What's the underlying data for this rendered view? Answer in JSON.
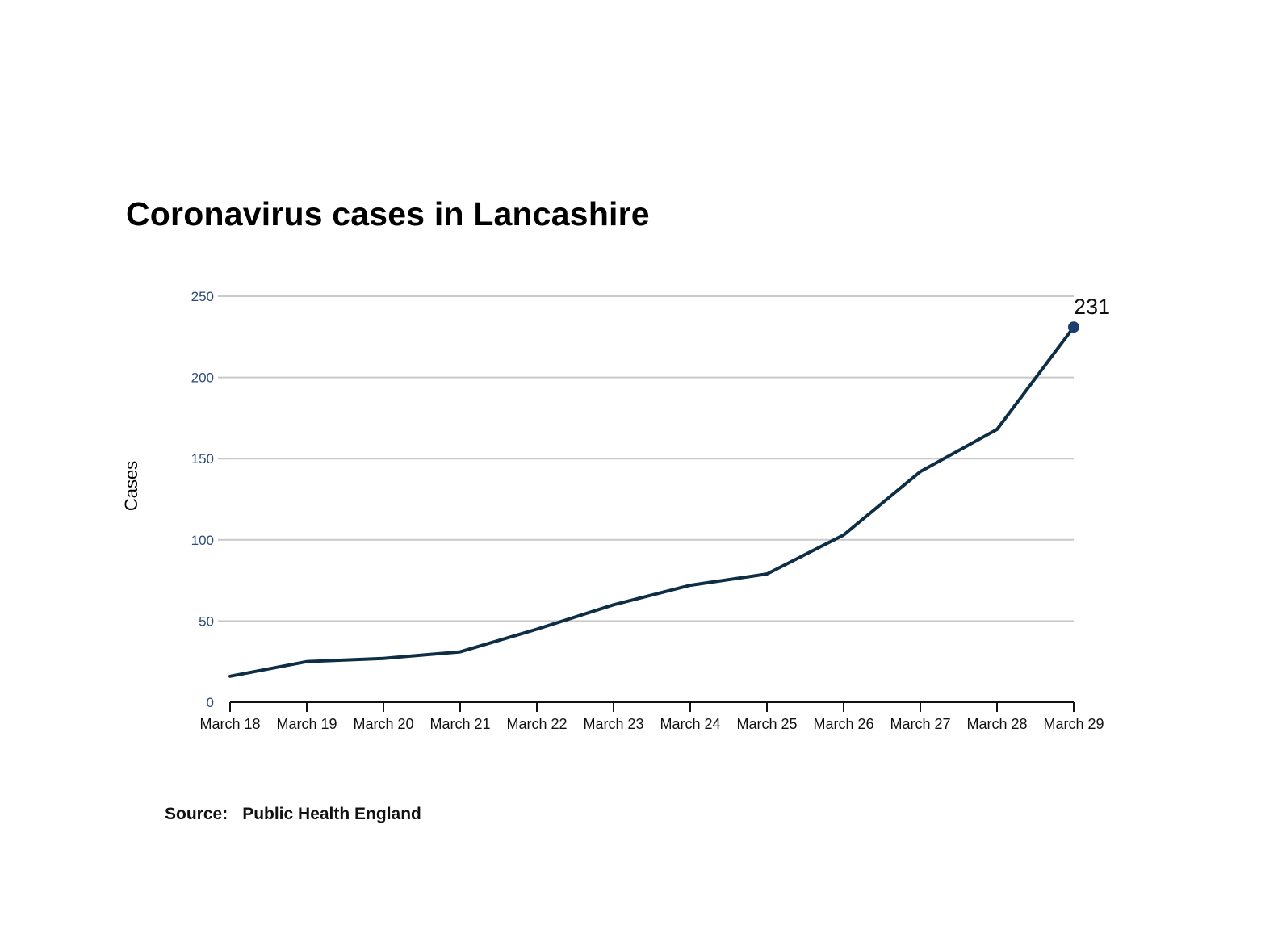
{
  "chart_data": {
    "type": "line",
    "title": "Coronavirus cases in Lancashire",
    "xlabel": "",
    "ylabel": "Cases",
    "categories": [
      "March 18",
      "March 19",
      "March 20",
      "March 21",
      "March 22",
      "March 23",
      "March 24",
      "March 25",
      "March 26",
      "March 27",
      "March 28",
      "March 29"
    ],
    "series": [
      {
        "values": [
          16,
          25,
          27,
          31,
          45,
          60,
          72,
          79,
          103,
          142,
          168,
          231
        ]
      }
    ],
    "ylim": [
      0,
      250
    ],
    "yticks": [
      0,
      50,
      100,
      150,
      200,
      250
    ],
    "ytick_labels": [
      "0",
      "50",
      "100",
      "150",
      "200",
      "250"
    ],
    "end_label": "231",
    "grid": true,
    "legend": "none"
  },
  "source": {
    "label": "Source:",
    "value": "Public Health England"
  },
  "colors": {
    "line": "#0d2e45",
    "marker": "#1b3f6e",
    "grid": "#c9c9c9",
    "ytick": "#2b4a7c"
  }
}
